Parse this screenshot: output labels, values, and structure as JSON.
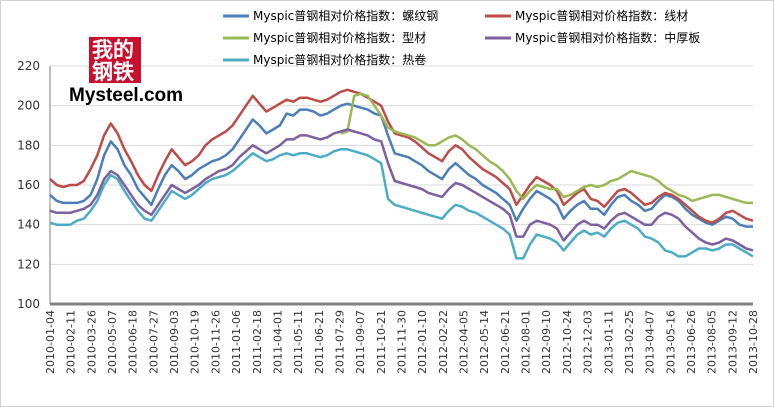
{
  "logo": {
    "cn": "我的钢铁",
    "en": "Mysteel.com"
  },
  "colors": {
    "axis": "#808080",
    "grid": "#d9d9d9"
  },
  "chart_data": {
    "type": "line",
    "title": "",
    "xlabel": "",
    "ylabel": "",
    "ylim": [
      100,
      220
    ],
    "yticks": [
      100,
      120,
      140,
      160,
      180,
      200,
      220
    ],
    "x_tick_labels": [
      "2010-01-04",
      "2010-02-11",
      "2010-03-26",
      "2010-05-07",
      "2010-06-18",
      "2010-07-27",
      "2010-09-03",
      "2010-10-19",
      "2010-11-26",
      "2011-01-06",
      "2011-02-18",
      "2011-04-01",
      "2011-05-11",
      "2011-06-21",
      "2011-07-29",
      "2011-09-07",
      "2011-10-21",
      "2011-11-30",
      "2012-01-10",
      "2012-02-22",
      "2012-04-05",
      "2012-05-14",
      "2012-06-21",
      "2012-08-01",
      "2012-09-10",
      "2012-10-24",
      "2012-12-03",
      "2013-01-11",
      "2013-02-25",
      "2013-04-07",
      "2013-05-16",
      "2013-06-26",
      "2013-08-05",
      "2013-09-12",
      "2013-10-28"
    ],
    "legend_position": "top",
    "series": [
      {
        "name": "Myspic普钢相对价格指数：螺纹钢",
        "color": "#4a7ebb",
        "values": [
          155,
          152,
          151,
          151,
          151,
          152,
          155,
          163,
          175,
          182,
          178,
          170,
          165,
          158,
          154,
          150,
          158,
          165,
          170,
          167,
          163,
          165,
          168,
          170,
          172,
          173,
          175,
          178,
          183,
          188,
          193,
          190,
          186,
          188,
          190,
          196,
          195,
          198,
          198,
          197,
          195,
          196,
          198,
          200,
          201,
          200,
          199,
          198,
          196,
          195,
          185,
          176,
          175,
          174,
          172,
          170,
          167,
          165,
          163,
          168,
          171,
          168,
          165,
          163,
          160,
          158,
          156,
          153,
          150,
          142,
          148,
          153,
          157,
          155,
          153,
          150,
          143,
          147,
          150,
          152,
          148,
          148,
          145,
          150,
          154,
          155,
          152,
          150,
          147,
          148,
          152,
          155,
          154,
          152,
          148,
          145,
          143,
          141,
          140,
          142,
          144,
          143,
          140,
          139,
          139
        ]
      },
      {
        "name": "Myspic普钢相对价格指数：线材",
        "color": "#be4b48",
        "values": [
          163,
          160,
          159,
          160,
          160,
          162,
          168,
          175,
          185,
          191,
          186,
          178,
          172,
          165,
          160,
          157,
          165,
          172,
          178,
          174,
          170,
          172,
          175,
          180,
          183,
          185,
          187,
          190,
          195,
          200,
          205,
          201,
          197,
          199,
          201,
          203,
          202,
          204,
          204,
          203,
          202,
          203,
          205,
          207,
          208,
          207,
          206,
          204,
          202,
          200,
          192,
          186,
          185,
          184,
          182,
          179,
          176,
          174,
          172,
          177,
          180,
          178,
          174,
          171,
          168,
          166,
          164,
          161,
          158,
          150,
          155,
          160,
          164,
          162,
          160,
          157,
          150,
          153,
          156,
          158,
          153,
          152,
          149,
          153,
          157,
          158,
          156,
          153,
          150,
          151,
          154,
          156,
          155,
          153,
          150,
          147,
          144,
          142,
          141,
          143,
          146,
          147,
          145,
          143,
          142
        ]
      },
      {
        "name": "Myspic普钢相对价格指数：型材",
        "color": "#98b954",
        "values": [
          null,
          null,
          null,
          null,
          null,
          null,
          null,
          null,
          null,
          null,
          null,
          null,
          null,
          null,
          null,
          null,
          null,
          null,
          null,
          null,
          null,
          null,
          null,
          null,
          null,
          null,
          null,
          null,
          null,
          null,
          null,
          null,
          null,
          null,
          null,
          null,
          null,
          null,
          null,
          null,
          null,
          null,
          null,
          186,
          187,
          205,
          206,
          205,
          200,
          195,
          189,
          187,
          186,
          185,
          184,
          182,
          180,
          180,
          182,
          184,
          185,
          183,
          180,
          178,
          175,
          172,
          170,
          167,
          163,
          157,
          153,
          157,
          160,
          159,
          158,
          158,
          154,
          155,
          157,
          159,
          160,
          159,
          160,
          162,
          163,
          165,
          167,
          166,
          165,
          164,
          162,
          159,
          157,
          155,
          154,
          152,
          153,
          154,
          155,
          155,
          154,
          153,
          152,
          151,
          151
        ]
      },
      {
        "name": "Myspic普钢相对价格指数：中厚板",
        "color": "#7d60a0",
        "values": [
          147,
          146,
          146,
          146,
          147,
          148,
          150,
          155,
          163,
          167,
          165,
          160,
          155,
          150,
          147,
          145,
          150,
          155,
          160,
          158,
          156,
          158,
          160,
          163,
          165,
          167,
          168,
          170,
          174,
          177,
          180,
          178,
          176,
          178,
          180,
          183,
          183,
          185,
          185,
          184,
          183,
          184,
          186,
          187,
          188,
          187,
          186,
          185,
          183,
          182,
          171,
          162,
          161,
          160,
          159,
          158,
          156,
          155,
          154,
          158,
          161,
          160,
          158,
          156,
          154,
          152,
          150,
          148,
          145,
          134,
          134,
          140,
          142,
          141,
          140,
          138,
          132,
          136,
          140,
          142,
          140,
          140,
          138,
          142,
          145,
          146,
          144,
          142,
          140,
          140,
          144,
          146,
          145,
          143,
          139,
          136,
          133,
          131,
          130,
          131,
          133,
          132,
          130,
          128,
          127
        ]
      },
      {
        "name": "Myspic普钢相对价格指数：热卷",
        "color": "#4bacc6",
        "values": [
          141,
          140,
          140,
          140,
          142,
          143,
          147,
          152,
          160,
          165,
          163,
          157,
          152,
          147,
          143,
          142,
          147,
          152,
          157,
          155,
          153,
          155,
          158,
          161,
          163,
          164,
          165,
          167,
          170,
          173,
          176,
          174,
          172,
          173,
          175,
          176,
          175,
          176,
          176,
          175,
          174,
          175,
          177,
          178,
          178,
          177,
          176,
          175,
          173,
          171,
          153,
          150,
          149,
          148,
          147,
          146,
          145,
          144,
          143,
          147,
          150,
          149,
          147,
          146,
          144,
          142,
          140,
          138,
          135,
          123,
          123,
          130,
          135,
          134,
          133,
          131,
          127,
          131,
          135,
          137,
          135,
          136,
          134,
          138,
          141,
          142,
          140,
          138,
          134,
          133,
          131,
          127,
          126,
          124,
          124,
          126,
          128,
          128,
          127,
          128,
          130,
          130,
          128,
          126,
          124
        ]
      }
    ]
  }
}
